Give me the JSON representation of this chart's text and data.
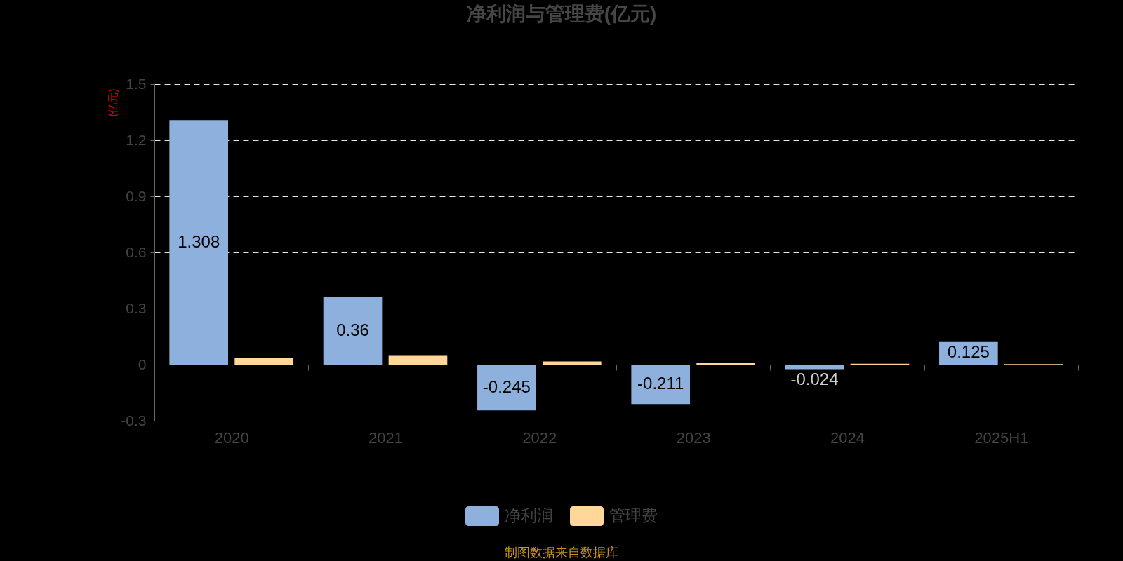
{
  "chart_data": {
    "type": "bar",
    "title": "净利润与管理费(亿元)",
    "ylabel": "(亿元)",
    "categories": [
      "2020",
      "2021",
      "2022",
      "2023",
      "2024",
      "2025H1"
    ],
    "series": [
      {
        "name": "净利润",
        "color": "#8eb0dc",
        "values": [
          1.308,
          0.36,
          -0.245,
          -0.211,
          -0.024,
          0.125
        ],
        "value_labels": [
          "1.308",
          "0.36",
          "-0.245",
          "-0.211",
          "-0.024",
          "0.125"
        ]
      },
      {
        "name": "管理费",
        "color": "#ffd899",
        "values": [
          0.037,
          0.051,
          0.017,
          0.008,
          0.005,
          0.003
        ]
      }
    ],
    "ylim": [
      -0.3,
      1.5
    ],
    "yticks": [
      -0.3,
      0,
      0.3,
      0.6,
      0.9,
      1.2,
      1.5
    ],
    "grid": "y",
    "legend": "bottom",
    "annotations": [
      "制图数据来自数据库"
    ]
  }
}
